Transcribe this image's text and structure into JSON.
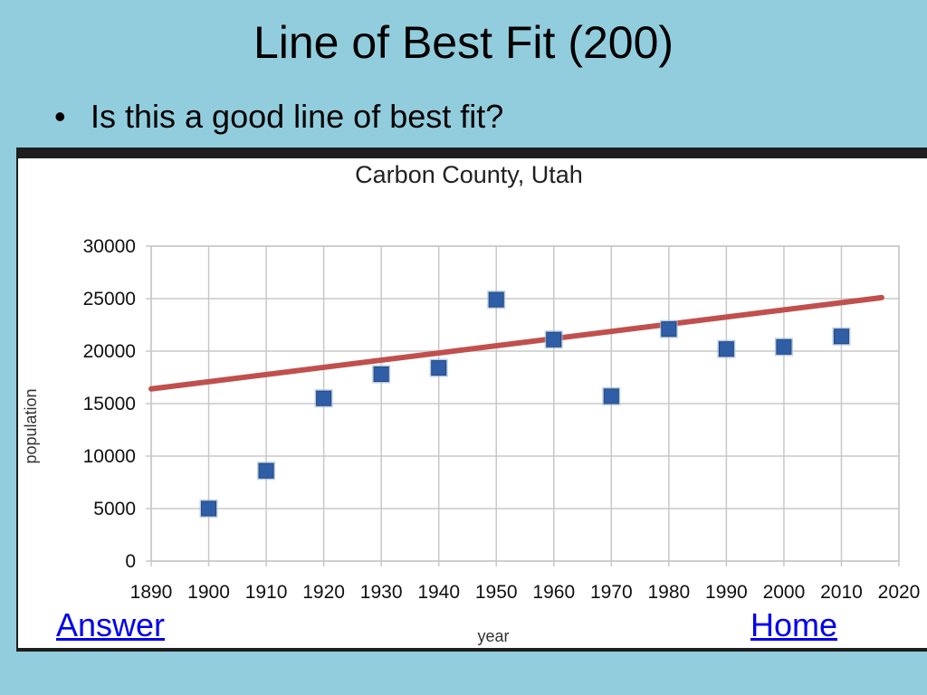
{
  "slide": {
    "title": "Line of Best Fit (200)",
    "bullet": "Is this a good line of best fit?",
    "bullet_marker": "•"
  },
  "links": {
    "answer": "Answer",
    "home": "Home"
  },
  "colors": {
    "background": "#92cddd",
    "point": "#2f5ea6",
    "fit_line": "#c0504d",
    "grid": "#c8c8c8"
  },
  "chart_data": {
    "type": "scatter",
    "title": "Carbon County, Utah",
    "xlabel": "year",
    "ylabel": "population",
    "xlim": [
      1890,
      2020
    ],
    "ylim": [
      0,
      30000
    ],
    "x_ticks": [
      1890,
      1900,
      1910,
      1920,
      1930,
      1940,
      1950,
      1960,
      1970,
      1980,
      1990,
      2000,
      2010,
      2020
    ],
    "y_ticks": [
      0,
      5000,
      10000,
      15000,
      20000,
      25000,
      30000
    ],
    "grid": true,
    "series": [
      {
        "x": [
          1900,
          1910,
          1920,
          1930,
          1940,
          1950,
          1960,
          1970,
          1980,
          1990,
          2000,
          2010
        ],
        "y": [
          5000,
          8600,
          15500,
          17800,
          18400,
          24900,
          21100,
          15700,
          22100,
          20200,
          20400,
          21400
        ]
      }
    ],
    "fit_line": {
      "x": [
        1890,
        2017
      ],
      "y": [
        16400,
        25100
      ]
    }
  }
}
